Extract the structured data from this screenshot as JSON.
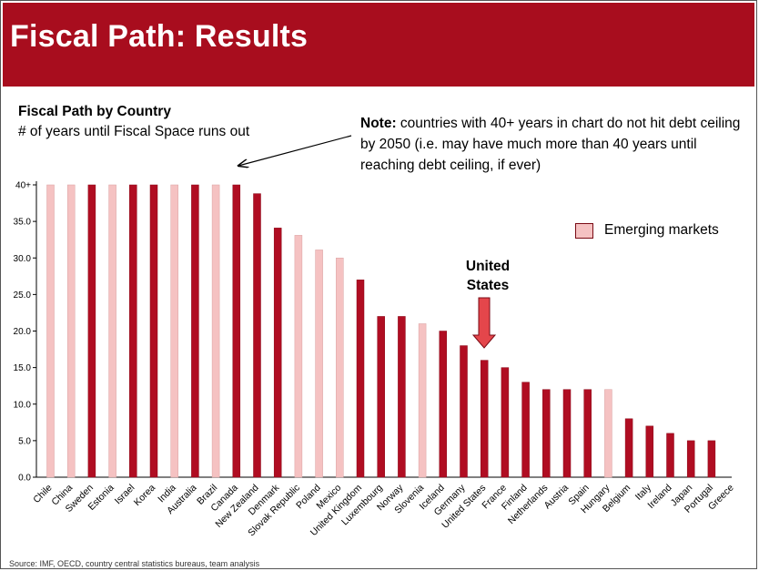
{
  "slide": {
    "title": "Fiscal Path: Results",
    "source_text": "Source: IMF, OECD, country central statistics bureaus, team analysis"
  },
  "note": {
    "bold": "Note:",
    "text": " countries with 40+ years in chart do not hit debt ceiling by 2050 (i.e. may have much more than 40 years until reaching debt ceiling, if ever)"
  },
  "callout": {
    "line1": "United",
    "line2": "States"
  },
  "colors": {
    "advanced": "#b00d22",
    "emerging": "#f5c2c2",
    "banner": "#a80d1e"
  },
  "chart_data": {
    "type": "bar",
    "title": "Fiscal Path by Country",
    "subtitle": "# of years until Fiscal Space runs out",
    "ylim": [
      0,
      40
    ],
    "yticks": [
      "0.0",
      "5.0",
      "10.0",
      "15.0",
      "20.0",
      "25.0",
      "30.0",
      "35.0",
      "40+"
    ],
    "legend": {
      "label": "Emerging markets",
      "position": "top-right"
    },
    "categories": [
      "Chile",
      "China",
      "Sweden",
      "Estonia",
      "Israel",
      "Korea",
      "India",
      "Australia",
      "Brazil",
      "Canada",
      "New Zealand",
      "Denmark",
      "Slovak Republic",
      "Poland",
      "Mexico",
      "United Kingdom",
      "Luxembourg",
      "Norway",
      "Slovenia",
      "Iceland",
      "Germany",
      "United States",
      "France",
      "Finland",
      "Netherlands",
      "Austria",
      "Spain",
      "Hungary",
      "Belgium",
      "Italy",
      "Ireland",
      "Japan",
      "Portugal",
      "Greece"
    ],
    "values": [
      40,
      40,
      40,
      40,
      40,
      40,
      40,
      40,
      40,
      40,
      38.8,
      34.1,
      33.1,
      31.1,
      30,
      27,
      22,
      22,
      21,
      20,
      18,
      16,
      15,
      13,
      12,
      12,
      12,
      12,
      8,
      7,
      6,
      5,
      5,
      null
    ],
    "emerging": [
      true,
      true,
      false,
      true,
      false,
      false,
      true,
      false,
      true,
      false,
      false,
      false,
      true,
      true,
      true,
      false,
      false,
      false,
      true,
      false,
      false,
      false,
      false,
      false,
      false,
      false,
      false,
      true,
      false,
      false,
      false,
      false,
      false,
      false
    ]
  }
}
